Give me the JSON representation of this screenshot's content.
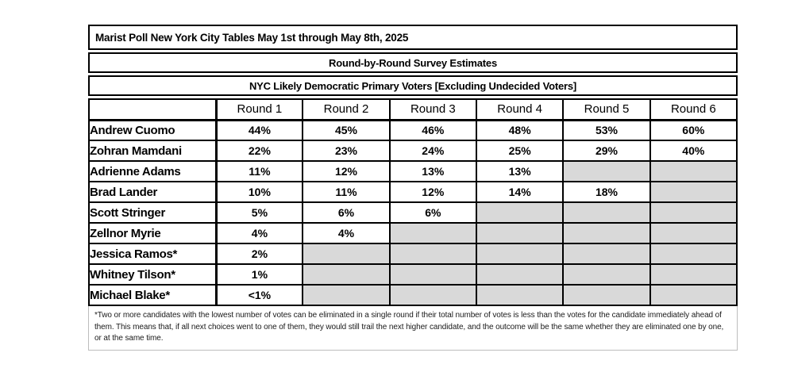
{
  "table": {
    "title": "Marist Poll New York City Tables May 1st through May 8th, 2025",
    "subtitle1": "Round-by-Round Survey Estimates",
    "subtitle2": "NYC Likely Democratic Primary Voters [Excluding Undecided Voters]",
    "columns": [
      "",
      "Round 1",
      "Round 2",
      "Round 3",
      "Round 4",
      "Round 5",
      "Round 6"
    ],
    "rows": [
      {
        "name": "Andrew Cuomo",
        "values": [
          "44%",
          "45%",
          "46%",
          "48%",
          "53%",
          "60%"
        ]
      },
      {
        "name": "Zohran Mamdani",
        "values": [
          "22%",
          "23%",
          "24%",
          "25%",
          "29%",
          "40%"
        ]
      },
      {
        "name": "Adrienne Adams",
        "values": [
          "11%",
          "12%",
          "13%",
          "13%",
          "",
          ""
        ]
      },
      {
        "name": "Brad Lander",
        "values": [
          "10%",
          "11%",
          "12%",
          "14%",
          "18%",
          ""
        ]
      },
      {
        "name": "Scott Stringer",
        "values": [
          "5%",
          "6%",
          "6%",
          "",
          "",
          ""
        ]
      },
      {
        "name": "Zellnor Myrie",
        "values": [
          "4%",
          "4%",
          "",
          "",
          "",
          ""
        ]
      },
      {
        "name": "Jessica Ramos*",
        "values": [
          "2%",
          "",
          "",
          "",
          "",
          ""
        ]
      },
      {
        "name": "Whitney Tilson*",
        "values": [
          "1%",
          "",
          "",
          "",
          "",
          ""
        ]
      },
      {
        "name": "Michael Blake*",
        "values": [
          "<1%",
          "",
          "",
          "",
          "",
          ""
        ]
      }
    ],
    "footnote": "*Two or more candidates with the lowest number of votes can be eliminated in a single round if their total number of votes is less than the votes for the candidate immediately ahead of them. This means that, if all next choices went to one of them, they would still trail the next higher candidate, and the outcome will be the same whether they are eliminated one by one, or at the same time.",
    "colors": {
      "eliminated_cell": "#d9d9d9",
      "border": "#000000",
      "background": "#ffffff"
    }
  }
}
